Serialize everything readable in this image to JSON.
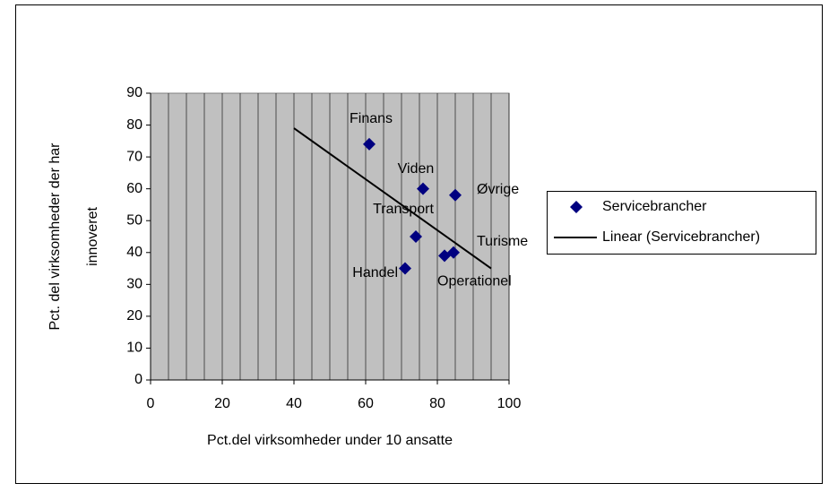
{
  "chart_data": {
    "type": "scatter",
    "xlabel": "Pct.del virksomheder under 10 ansatte",
    "ylabel": [
      "Pct. del virksomheder der har",
      "innoveret"
    ],
    "xlim": [
      0,
      100
    ],
    "xticks": [
      0,
      20,
      40,
      60,
      80,
      100
    ],
    "ylim": [
      0,
      90
    ],
    "yticks": [
      0,
      10,
      20,
      30,
      40,
      50,
      60,
      70,
      80,
      90
    ],
    "grid": true,
    "legend": "right",
    "series": [
      {
        "name": "Servicebrancher",
        "color": "#000080",
        "x": [
          61,
          76,
          85,
          74,
          84.5,
          82,
          71
        ],
        "values": [
          74,
          60,
          58,
          45,
          40,
          39,
          35
        ],
        "point_labels": [
          "Finans",
          "Viden",
          "Øvrige",
          "Transport",
          "Turisme",
          "Operationel",
          "Handel"
        ]
      },
      {
        "name": "Linear (Servicebrancher)",
        "color": "#000000",
        "x": [
          40,
          95
        ],
        "values": [
          79,
          35
        ]
      }
    ]
  }
}
